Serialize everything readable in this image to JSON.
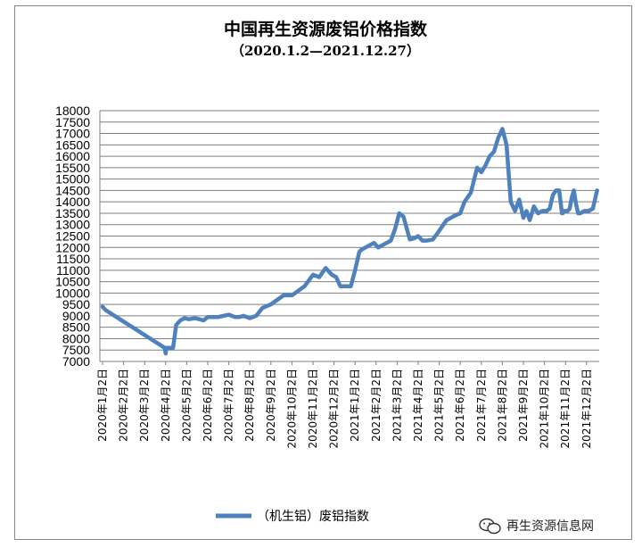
{
  "chart_data": {
    "type": "line",
    "title": "中国再生资源废铝价格指数",
    "subtitle": "（2020.1.2—2021.12.27）",
    "xlabel": "",
    "ylabel": "",
    "ylim": [
      7000,
      18000
    ],
    "yticks": [
      7000,
      7500,
      8000,
      8500,
      9000,
      9500,
      10000,
      10500,
      11000,
      11500,
      12000,
      12500,
      13000,
      13500,
      14000,
      14500,
      15000,
      15500,
      16000,
      16500,
      17000,
      17500,
      18000
    ],
    "categories": [
      "2020年1月2日",
      "2020年2月2日",
      "2020年3月2日",
      "2020年4月2日",
      "2020年5月2日",
      "2020年6月2日",
      "2020年7月2日",
      "2020年8月2日",
      "2020年9月2日",
      "2020年10月2日",
      "2020年11月2日",
      "2020年12月2日",
      "2021年1月2日",
      "2021年2月2日",
      "2021年3月2日",
      "2021年4月2日",
      "2021年5月2日",
      "2021年6月2日",
      "2021年7月2日",
      "2021年8月2日",
      "2021年9月2日",
      "2021年10月2日",
      "2021年11月2日",
      "2021年12月2日"
    ],
    "grid": "horizontal",
    "legend_position": "bottom",
    "series": [
      {
        "name": "（机生铝）废铝指数",
        "color": "#4f81bd",
        "x": [
          0,
          0.15,
          2.95,
          3.0,
          3.03,
          3.15,
          3.35,
          3.5,
          3.7,
          3.9,
          4.1,
          4.4,
          4.6,
          4.8,
          5.0,
          5.5,
          6.0,
          6.3,
          6.5,
          6.7,
          7.0,
          7.3,
          7.6,
          8.0,
          8.3,
          8.6,
          9.0,
          9.3,
          9.6,
          10.0,
          10.3,
          10.6,
          10.9,
          11.1,
          11.3,
          11.5,
          11.6,
          11.8,
          12.0,
          12.2,
          12.3,
          12.5,
          12.7,
          12.9,
          13.1,
          13.3,
          13.5,
          13.7,
          13.9,
          14.1,
          14.3,
          14.6,
          14.8,
          15.0,
          15.2,
          15.4,
          15.7,
          15.9,
          16.05,
          16.2,
          16.35,
          16.55,
          16.75,
          17.0,
          17.2,
          17.5,
          17.8,
          18.0,
          18.2,
          18.4,
          18.6,
          18.8,
          19.0,
          19.2,
          19.4,
          19.6,
          19.8,
          20.0,
          20.15,
          20.3,
          20.5,
          20.7,
          20.9,
          21.1,
          21.25,
          21.4,
          21.55,
          21.7,
          21.78,
          21.83,
          21.87,
          21.92,
          22.0,
          22.1,
          22.2,
          22.3,
          22.4,
          22.5,
          22.6,
          22.7,
          22.9,
          23.1,
          23.3,
          23.5
        ],
        "values": [
          9400,
          9250,
          7600,
          7350,
          7600,
          7600,
          7600,
          8600,
          8800,
          8900,
          8850,
          8900,
          8850,
          8800,
          8950,
          8950,
          9050,
          8950,
          8950,
          9000,
          8900,
          9000,
          9350,
          9500,
          9700,
          9900,
          9900,
          10100,
          10300,
          10800,
          10700,
          11100,
          10800,
          10700,
          10300,
          10300,
          10300,
          10300,
          11000,
          11800,
          11900,
          12000,
          12100,
          12200,
          12000,
          12100,
          12200,
          12300,
          12800,
          13500,
          13350,
          12350,
          12400,
          12500,
          12300,
          12300,
          12350,
          12600,
          12800,
          13000,
          13200,
          13300,
          13400,
          13500,
          14000,
          14400,
          15500,
          15300,
          15600,
          16000,
          16200,
          16800,
          17200,
          16500,
          14000,
          13600,
          14100,
          13300,
          13600,
          13200,
          13800,
          13500,
          13600,
          13600,
          13700,
          14300,
          14500,
          14500,
          13900,
          13500,
          13500,
          13600,
          13600,
          13600,
          13700,
          14200,
          14500,
          13900,
          13500,
          13500,
          13600,
          13600,
          13700,
          14500
        ]
      }
    ]
  },
  "watermark": {
    "text": "再生资源信息网",
    "icon": "wechat-logo-icon"
  }
}
